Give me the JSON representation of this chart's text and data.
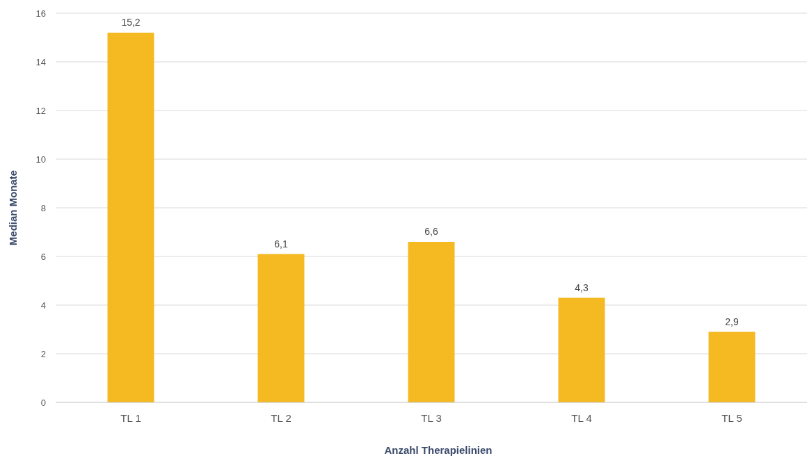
{
  "chart_data": {
    "type": "bar",
    "xlabel": "Anzahl Therapielinien",
    "ylabel": "Median Monate",
    "categories": [
      "TL 1",
      "TL 2",
      "TL 3",
      "TL 4",
      "TL 5"
    ],
    "values": [
      15.2,
      6.1,
      6.6,
      4.3,
      2.9
    ],
    "value_labels": [
      "15,2",
      "6,1",
      "6,6",
      "4,3",
      "2,9"
    ],
    "color": "#f5b921",
    "ylim": [
      0,
      16
    ],
    "yticks": [
      0,
      2,
      4,
      6,
      8,
      10,
      12,
      14,
      16
    ],
    "grid": "y"
  }
}
